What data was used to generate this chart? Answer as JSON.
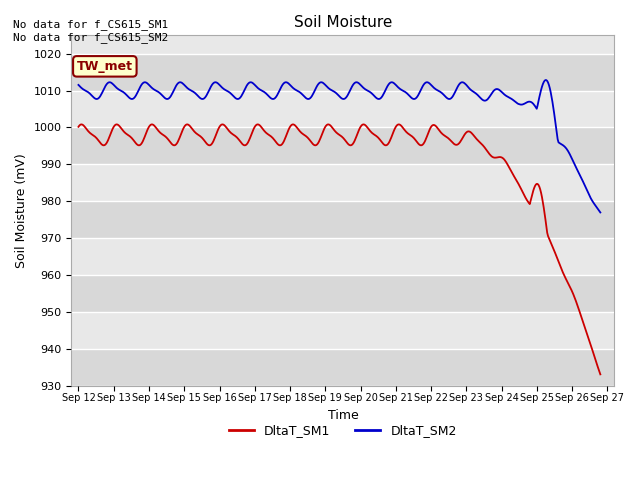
{
  "title": "Soil Moisture",
  "ylabel": "Soil Moisture (mV)",
  "xlabel": "Time",
  "ylim": [
    930,
    1025
  ],
  "yticks": [
    930,
    940,
    950,
    960,
    970,
    980,
    990,
    1000,
    1010,
    1020
  ],
  "x_labels": [
    "Sep 12",
    "Sep 13",
    "Sep 14",
    "Sep 15",
    "Sep 16",
    "Sep 17",
    "Sep 18",
    "Sep 19",
    "Sep 20",
    "Sep 21",
    "Sep 22",
    "Sep 23",
    "Sep 24",
    "Sep 25",
    "Sep 26",
    "Sep 27"
  ],
  "annotation_text": "No data for f_CS615_SM1\nNo data for f_CS615_SM2",
  "legend_box_label": "TW_met",
  "legend_box_color": "#ffffcc",
  "legend_box_edge": "#8B0000",
  "color_sm1": "#cc0000",
  "color_sm2": "#0000cc",
  "bg_color": "#e8e8e8",
  "bg_stripe_color": "#d8d8d8"
}
